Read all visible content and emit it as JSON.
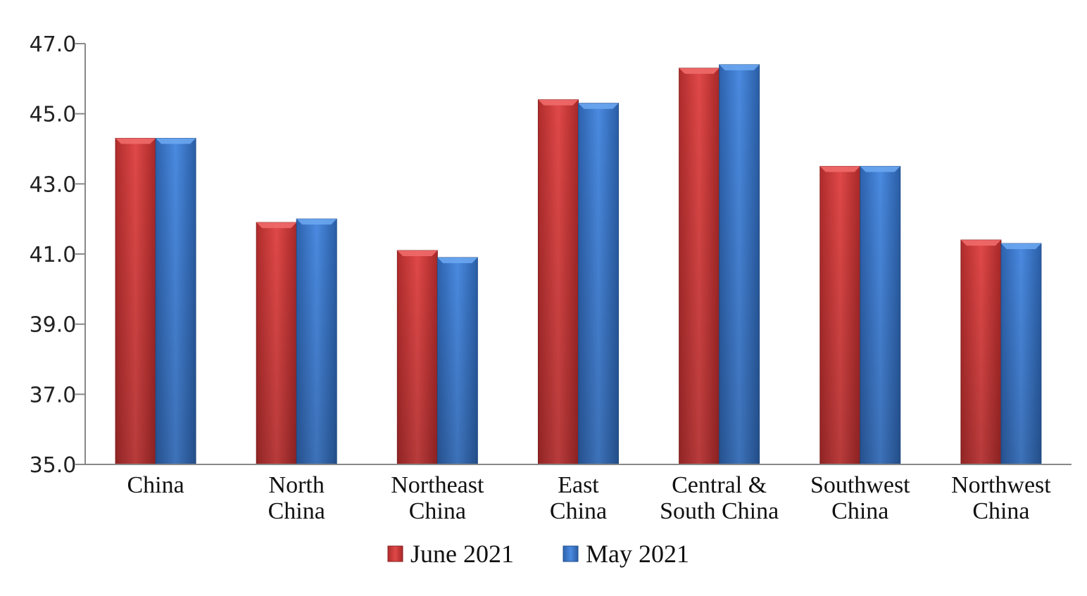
{
  "chart_data": {
    "type": "bar",
    "title": "",
    "xlabel": "",
    "ylabel": "",
    "ylim": [
      35.0,
      47.0
    ],
    "yticks": [
      "35.0",
      "37.0",
      "39.0",
      "41.0",
      "43.0",
      "45.0",
      "47.0"
    ],
    "categories": [
      [
        "China"
      ],
      [
        "North",
        "China"
      ],
      [
        "Northeast",
        "China"
      ],
      [
        "East",
        "China"
      ],
      [
        "Central &",
        "South China"
      ],
      [
        "Southwest",
        "China"
      ],
      [
        "Northwest",
        "China"
      ]
    ],
    "series": [
      {
        "name": "June 2021",
        "color": "#d63c3c",
        "values": [
          44.3,
          41.9,
          41.1,
          45.4,
          46.3,
          43.5,
          41.4
        ]
      },
      {
        "name": "May 2021",
        "color": "#3a7bd5",
        "values": [
          44.3,
          42.0,
          40.9,
          45.3,
          46.4,
          43.5,
          41.3
        ]
      }
    ],
    "legend_position": "bottom",
    "grid": false
  }
}
